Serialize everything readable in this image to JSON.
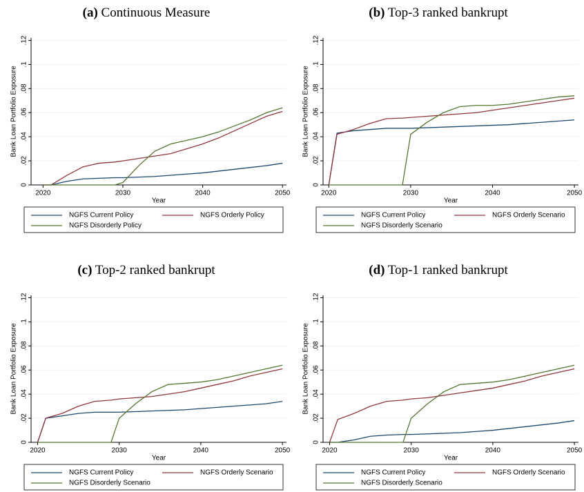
{
  "chart_data": [
    {
      "type": "line",
      "label": "(a)",
      "title": "Continuous Measure",
      "x_label": "Year",
      "y_label": "Bank Loan Portfolio Exposure",
      "x": [
        2020,
        2021,
        2023,
        2025,
        2027,
        2029,
        2030,
        2032,
        2034,
        2036,
        2038,
        2040,
        2042,
        2044,
        2046,
        2048,
        2050
      ],
      "xlim": [
        2018.5,
        2050.5
      ],
      "xticks": [
        2020,
        2030,
        2040,
        2050
      ],
      "ylim": [
        0,
        0.122
      ],
      "yticks": [
        0,
        {
          "value": 0.02,
          "label": ".02"
        },
        {
          "value": 0.04,
          "label": ".04"
        },
        {
          "value": 0.06,
          "label": ".06"
        },
        {
          "value": 0.08,
          "label": ".08"
        },
        {
          "value": 0.1,
          "label": ".1"
        },
        {
          "value": 0.12,
          "label": ".12"
        }
      ],
      "grid": true,
      "series": [
        {
          "name": "NGFS Current Policy",
          "color": "#1a476f",
          "values": [
            0,
            0,
            0.003,
            0.005,
            0.0055,
            0.006,
            0.006,
            0.0065,
            0.007,
            0.008,
            0.009,
            0.01,
            0.0115,
            0.013,
            0.0145,
            0.016,
            0.018
          ]
        },
        {
          "name": "NGFS Orderly Policy",
          "color": "#90353b",
          "values": [
            0,
            0,
            0.008,
            0.015,
            0.018,
            0.019,
            0.02,
            0.022,
            0.024,
            0.026,
            0.03,
            0.034,
            0.039,
            0.045,
            0.051,
            0.057,
            0.061
          ]
        },
        {
          "name": "NGFS Disorderly Policy",
          "color": "#55752f",
          "values": [
            0,
            0,
            0,
            0,
            0,
            0,
            0.002,
            0.016,
            0.028,
            0.034,
            0.037,
            0.04,
            0.044,
            0.049,
            0.054,
            0.06,
            0.064
          ]
        }
      ]
    },
    {
      "type": "line",
      "label": "(b)",
      "title": "Top-3 ranked bankrupt",
      "x_label": "Year",
      "y_label": "Bank Loan Portfolio Exposure",
      "x": [
        2020,
        2021,
        2023,
        2025,
        2027,
        2029,
        2030,
        2032,
        2034,
        2036,
        2038,
        2040,
        2042,
        2044,
        2046,
        2048,
        2050
      ],
      "xlim": [
        2019.3,
        2050.5
      ],
      "xticks": [
        2020,
        2030,
        2040,
        2050
      ],
      "ylim": [
        0,
        0.122
      ],
      "yticks": [
        0,
        {
          "value": 0.02,
          "label": ".02"
        },
        {
          "value": 0.04,
          "label": ".04"
        },
        {
          "value": 0.06,
          "label": ".06"
        },
        {
          "value": 0.08,
          "label": ".08"
        },
        {
          "value": 0.1,
          "label": ".1"
        },
        {
          "value": 0.12,
          "label": ".12"
        }
      ],
      "grid": true,
      "series": [
        {
          "name": "NGFS Current Policy",
          "color": "#1a476f",
          "values": [
            0,
            0.043,
            0.045,
            0.046,
            0.047,
            0.047,
            0.047,
            0.0475,
            0.048,
            0.0485,
            0.049,
            0.0495,
            0.05,
            0.051,
            0.052,
            0.053,
            0.054
          ]
        },
        {
          "name": "NGFS Orderly Scenario",
          "color": "#90353b",
          "values": [
            0,
            0.042,
            0.046,
            0.051,
            0.055,
            0.0555,
            0.056,
            0.057,
            0.058,
            0.059,
            0.06,
            0.062,
            0.064,
            0.066,
            0.068,
            0.07,
            0.072
          ]
        },
        {
          "name": "NGFS Disorderly Scenario",
          "color": "#55752f",
          "values": [
            0,
            0,
            0,
            0,
            0,
            0,
            0.042,
            0.052,
            0.06,
            0.065,
            0.066,
            0.066,
            0.067,
            0.069,
            0.071,
            0.073,
            0.074
          ]
        }
      ]
    },
    {
      "type": "line",
      "label": "(c)",
      "title": "Top-2 ranked bankrupt",
      "x_label": "Year",
      "y_label": "Bank Loan Portfolio Exposure",
      "x": [
        2020,
        2021,
        2023,
        2025,
        2027,
        2029,
        2030,
        2032,
        2034,
        2036,
        2038,
        2040,
        2042,
        2044,
        2046,
        2048,
        2050
      ],
      "xlim": [
        2019.2,
        2050.5
      ],
      "xticks": [
        2020,
        2030,
        2040,
        2050
      ],
      "ylim": [
        0,
        0.122
      ],
      "yticks": [
        0,
        {
          "value": 0.02,
          "label": ".02"
        },
        {
          "value": 0.04,
          "label": ".04"
        },
        {
          "value": 0.06,
          "label": ".06"
        },
        {
          "value": 0.08,
          "label": ".08"
        },
        {
          "value": 0.1,
          "label": ".1"
        },
        {
          "value": 0.12,
          "label": ".12"
        }
      ],
      "grid": true,
      "series": [
        {
          "name": "NGFS Current Policy",
          "color": "#1a476f",
          "values": [
            0,
            0.02,
            0.022,
            0.024,
            0.025,
            0.025,
            0.025,
            0.0255,
            0.026,
            0.0265,
            0.027,
            0.028,
            0.029,
            0.03,
            0.031,
            0.032,
            0.034
          ]
        },
        {
          "name": "NGFS Orderly Scenario",
          "color": "#90353b",
          "values": [
            0,
            0.02,
            0.024,
            0.03,
            0.034,
            0.035,
            0.036,
            0.037,
            0.038,
            0.04,
            0.042,
            0.045,
            0.048,
            0.051,
            0.055,
            0.058,
            0.061
          ]
        },
        {
          "name": "NGFS Disorderly Scenario",
          "color": "#55752f",
          "values": [
            0,
            0,
            0,
            0,
            0,
            0,
            0.02,
            0.032,
            0.042,
            0.048,
            0.049,
            0.05,
            0.052,
            0.055,
            0.058,
            0.061,
            0.064
          ]
        }
      ]
    },
    {
      "type": "line",
      "label": "(d)",
      "title": "Top-1 ranked bankrupt",
      "x_label": "Year",
      "y_label": "Bank Loan Portfolio Exposure",
      "x": [
        2020,
        2021,
        2023,
        2025,
        2027,
        2029,
        2030,
        2032,
        2034,
        2036,
        2038,
        2040,
        2042,
        2044,
        2046,
        2048,
        2050
      ],
      "xlim": [
        2019.2,
        2050.5
      ],
      "xticks": [
        2020,
        2030,
        2040,
        2050
      ],
      "ylim": [
        0,
        0.122
      ],
      "yticks": [
        0,
        {
          "value": 0.02,
          "label": ".02"
        },
        {
          "value": 0.04,
          "label": ".04"
        },
        {
          "value": 0.06,
          "label": ".06"
        },
        {
          "value": 0.08,
          "label": ".08"
        },
        {
          "value": 0.1,
          "label": ".1"
        },
        {
          "value": 0.12,
          "label": ".12"
        }
      ],
      "grid": true,
      "series": [
        {
          "name": "NGFS Current Policy",
          "color": "#1a476f",
          "values": [
            0,
            0,
            0.002,
            0.005,
            0.006,
            0.0065,
            0.0065,
            0.007,
            0.0075,
            0.008,
            0.009,
            0.01,
            0.0115,
            0.013,
            0.0145,
            0.016,
            0.018
          ]
        },
        {
          "name": "NGFS Orderly Scenario",
          "color": "#90353b",
          "values": [
            0,
            0.019,
            0.024,
            0.03,
            0.034,
            0.035,
            0.036,
            0.037,
            0.039,
            0.041,
            0.043,
            0.045,
            0.048,
            0.051,
            0.055,
            0.058,
            0.061
          ]
        },
        {
          "name": "NGFS Disorderly Scenario",
          "color": "#55752f",
          "values": [
            0,
            0,
            0,
            0,
            0,
            0,
            0.02,
            0.032,
            0.042,
            0.048,
            0.049,
            0.05,
            0.052,
            0.055,
            0.058,
            0.061,
            0.064
          ]
        }
      ]
    }
  ]
}
